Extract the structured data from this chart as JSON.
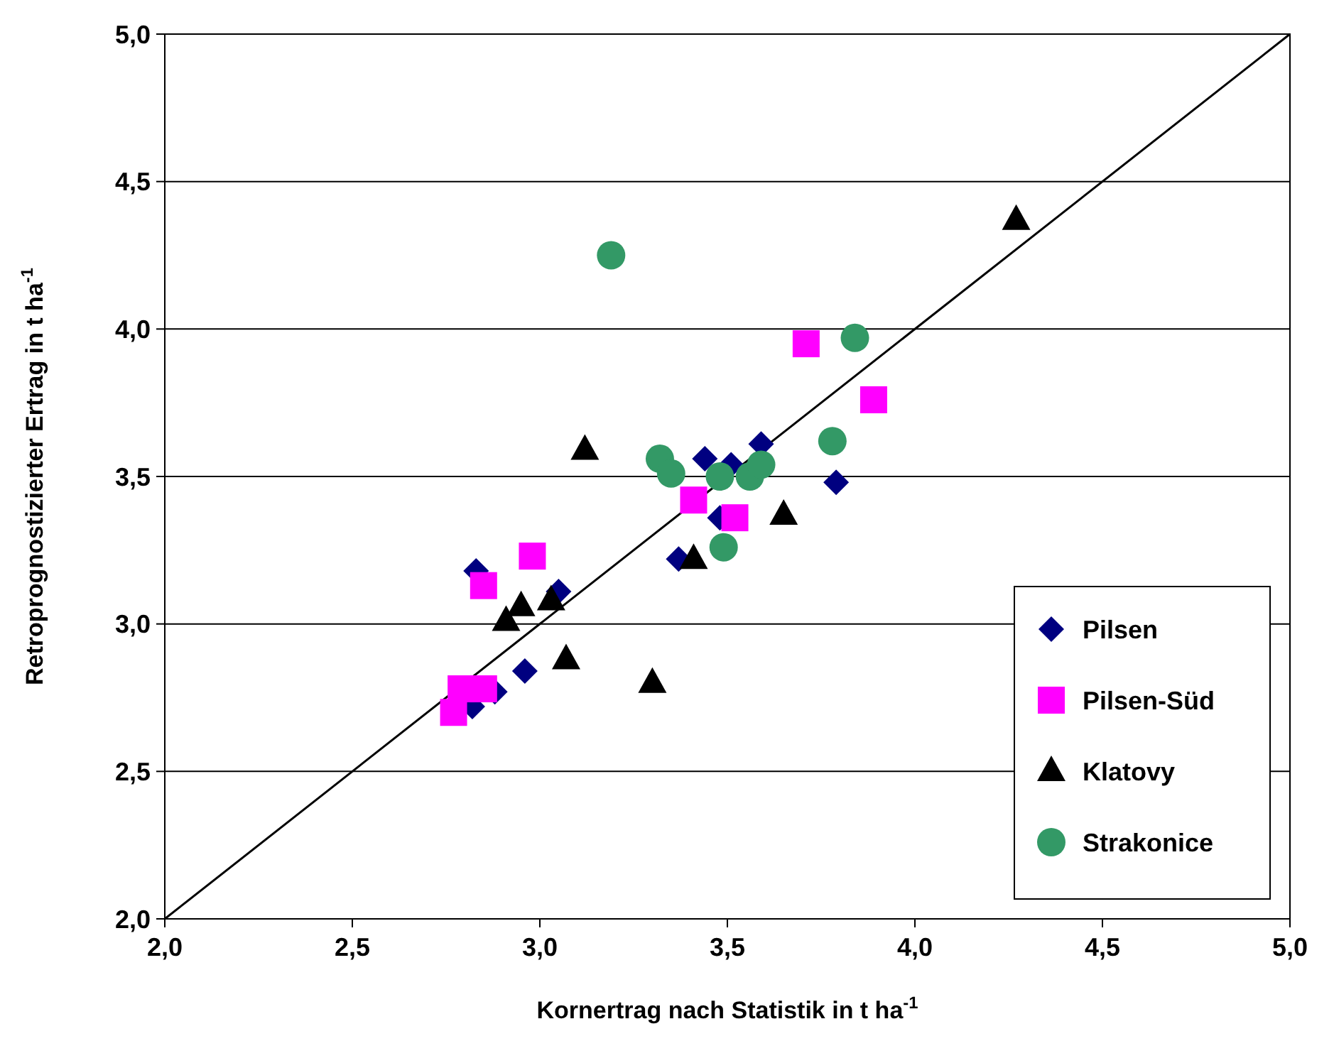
{
  "chart_data": {
    "type": "scatter",
    "xlabel": "Kornertrag nach Statistik  in t ha$^{-1}$",
    "ylabel": "Retroprognostizierter Ertrag in t ha$^{-1}$",
    "xlim": [
      2,
      5
    ],
    "ylim": [
      2,
      5
    ],
    "xticks": [
      {
        "value": 2,
        "label": "2,0"
      },
      {
        "value": 2.5,
        "label": "2,5"
      },
      {
        "value": 3,
        "label": "3,0"
      },
      {
        "value": 3.5,
        "label": "3,5"
      },
      {
        "value": 4,
        "label": "4,0"
      },
      {
        "value": 4.5,
        "label": "4,5"
      },
      {
        "value": 5,
        "label": "5,0"
      }
    ],
    "yticks": [
      {
        "value": 2,
        "label": "2,0"
      },
      {
        "value": 2.5,
        "label": "2,5"
      },
      {
        "value": 3,
        "label": "3,0"
      },
      {
        "value": 3.5,
        "label": "3,5"
      },
      {
        "value": 4,
        "label": "4,0"
      },
      {
        "value": 4.5,
        "label": "4,5"
      },
      {
        "value": 5,
        "label": "5,0"
      }
    ],
    "grid": "y",
    "legend": "bottom right",
    "series": [
      {
        "type": "line",
        "color": "#000000",
        "marker": "none",
        "line_style": "solid",
        "x": [
          2,
          5
        ],
        "values": [
          2,
          5
        ]
      },
      {
        "name": "Pilsen",
        "color": "#000080",
        "marker": "diamond",
        "x": [
          2.83,
          3.05,
          2.96,
          2.82,
          2.88,
          3.37,
          3.44,
          3.51,
          3.59,
          3.48,
          3.79
        ],
        "values": [
          3.18,
          3.11,
          2.84,
          2.72,
          2.77,
          3.22,
          3.56,
          3.54,
          3.61,
          3.36,
          3.48
        ]
      },
      {
        "name": "Pilsen-Süd",
        "color": "#ff00ff",
        "marker": "square",
        "x": [
          2.98,
          2.85,
          3.41,
          3.52,
          2.79,
          2.85,
          2.77,
          3.71,
          3.89
        ],
        "values": [
          3.23,
          3.13,
          3.42,
          3.36,
          2.78,
          2.78,
          2.7,
          3.95,
          3.76
        ]
      },
      {
        "name": "Klatovy",
        "color": "#000000",
        "marker": "triangle",
        "x": [
          3.12,
          2.91,
          2.95,
          3.03,
          3.07,
          3.3,
          3.41,
          3.65,
          4.27
        ],
        "values": [
          3.59,
          3.01,
          3.06,
          3.08,
          2.88,
          2.8,
          3.22,
          3.37,
          4.37
        ]
      },
      {
        "name": "Strakonice",
        "color": "#339966",
        "marker": "circle",
        "x": [
          3.32,
          3.35,
          3.48,
          3.56,
          3.59,
          3.49,
          3.78,
          3.19,
          3.84
        ],
        "values": [
          3.56,
          3.51,
          3.5,
          3.5,
          3.54,
          3.26,
          3.62,
          4.25,
          3.97
        ]
      }
    ]
  }
}
